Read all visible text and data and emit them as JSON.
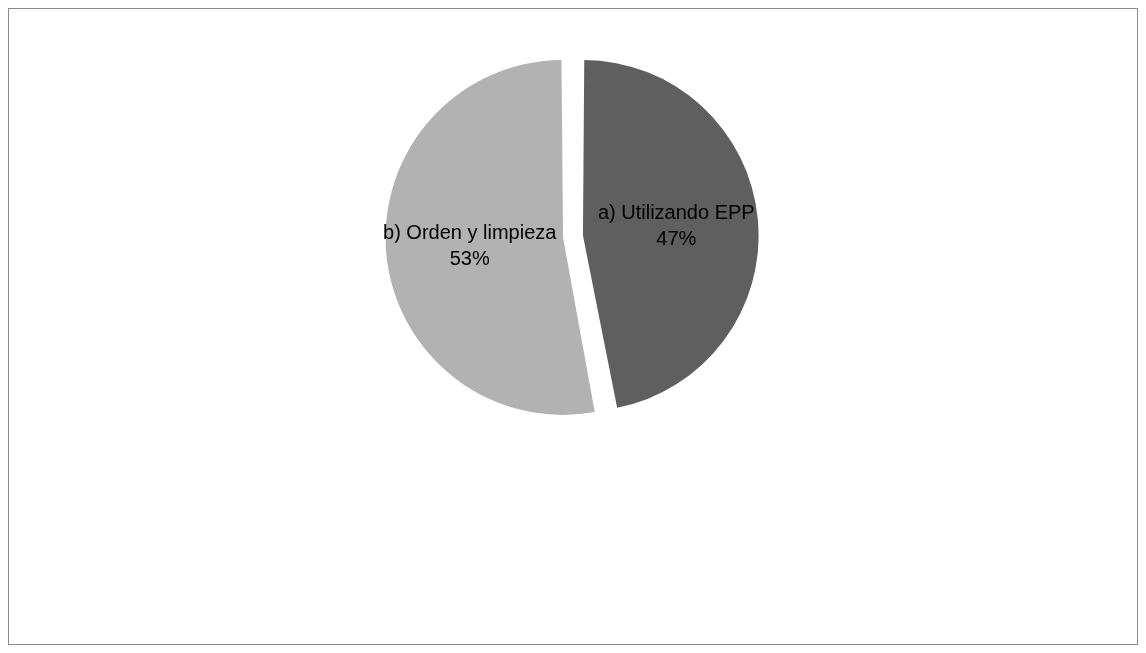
{
  "chart_data": {
    "type": "pie",
    "categories": [
      "a) Utilizando EPP",
      "b) Orden y limpieza"
    ],
    "values": [
      47,
      53
    ],
    "colors": [
      "#5f5f5f",
      "#b2b2b2"
    ],
    "value_labels": [
      "47%",
      "53%"
    ],
    "legend": false
  }
}
